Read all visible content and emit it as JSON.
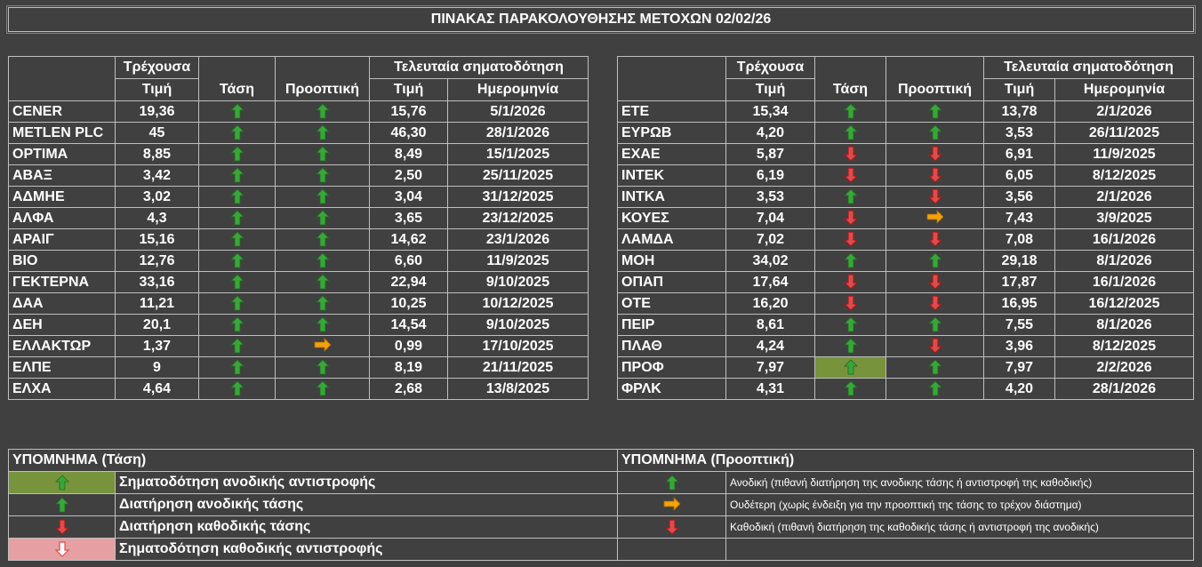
{
  "title": "ΠΙΝΑΚΑΣ ΠΑΡΑΚΟΛΟΥΘΗΣΗΣ ΜΕΤΟΧΩΝ 02/02/26",
  "headers": {
    "current_line1": "Τρέχουσα",
    "current_line2": "Τιμή",
    "trend": "Τάση",
    "outlook": "Προοπτική",
    "last_signal": "Τελευταία σηματοδότηση",
    "price": "Τιμή",
    "date": "Ημερομηνία"
  },
  "left_rows": [
    {
      "name": "CENER",
      "current": "19,36",
      "trend": "up",
      "outlook": "up",
      "price": "15,76",
      "date": "5/1/2026"
    },
    {
      "name": "METLEN PLC",
      "current": "45",
      "trend": "up",
      "outlook": "up",
      "price": "46,30",
      "date": "28/1/2026"
    },
    {
      "name": "ΟΡΤΙΜΑ",
      "current": "8,85",
      "trend": "up",
      "outlook": "up",
      "price": "8,49",
      "date": "15/1/2025"
    },
    {
      "name": "ΑΒΑΞ",
      "current": "3,42",
      "trend": "up",
      "outlook": "up",
      "price": "2,50",
      "date": "25/11/2025"
    },
    {
      "name": "ΑΔΜΗΕ",
      "current": "3,02",
      "trend": "up",
      "outlook": "up",
      "price": "3,04",
      "date": "31/12/2025"
    },
    {
      "name": "ΑΛΦΑ",
      "current": "4,3",
      "trend": "up",
      "outlook": "up",
      "price": "3,65",
      "date": "23/12/2025"
    },
    {
      "name": "ΑΡΑΙΓ",
      "current": "15,16",
      "trend": "up",
      "outlook": "up",
      "price": "14,62",
      "date": "23/1/2026"
    },
    {
      "name": "ΒΙΟ",
      "current": "12,76",
      "trend": "up",
      "outlook": "up",
      "price": "6,60",
      "date": "11/9/2025"
    },
    {
      "name": "ΓΕΚΤΕΡΝΑ",
      "current": "33,16",
      "trend": "up",
      "outlook": "up",
      "price": "22,94",
      "date": "9/10/2025"
    },
    {
      "name": "ΔΑΑ",
      "current": "11,21",
      "trend": "up",
      "outlook": "up",
      "price": "10,25",
      "date": "10/12/2025"
    },
    {
      "name": "ΔΕΗ",
      "current": "20,1",
      "trend": "up",
      "outlook": "up",
      "price": "14,54",
      "date": "9/10/2025"
    },
    {
      "name": "ΕΛΛΑΚΤΩΡ",
      "current": "1,37",
      "trend": "up",
      "outlook": "neutral",
      "price": "0,99",
      "date": "17/10/2025"
    },
    {
      "name": "ΕΛΠΕ",
      "current": "9",
      "trend": "up",
      "outlook": "up",
      "price": "8,19",
      "date": "21/11/2025"
    },
    {
      "name": "ΕΛΧΑ",
      "current": "4,64",
      "trend": "up",
      "outlook": "up",
      "price": "2,68",
      "date": "13/8/2025"
    }
  ],
  "right_rows": [
    {
      "name": "ΕΤΕ",
      "current": "15,34",
      "trend": "up",
      "outlook": "up",
      "price": "13,78",
      "date": "2/1/2026"
    },
    {
      "name": "ΕΥΡΩΒ",
      "current": "4,20",
      "trend": "up",
      "outlook": "up",
      "price": "3,53",
      "date": "26/11/2025"
    },
    {
      "name": "ΕΧΑΕ",
      "current": "5,87",
      "trend": "down",
      "outlook": "down",
      "price": "6,91",
      "date": "11/9/2025"
    },
    {
      "name": "ΙΝΤΕΚ",
      "current": "6,19",
      "trend": "down",
      "outlook": "down",
      "price": "6,05",
      "date": "8/12/2025"
    },
    {
      "name": "ΙΝΤΚΑ",
      "current": "3,53",
      "trend": "up",
      "outlook": "down",
      "price": "3,56",
      "date": "2/1/2026"
    },
    {
      "name": "ΚΟΥΕΣ",
      "current": "7,04",
      "trend": "down",
      "outlook": "neutral",
      "price": "7,43",
      "date": "3/9/2025"
    },
    {
      "name": "ΛΑΜΔΑ",
      "current": "7,02",
      "trend": "down",
      "outlook": "down",
      "price": "7,08",
      "date": "16/1/2026"
    },
    {
      "name": "ΜΟΗ",
      "current": "34,02",
      "trend": "up",
      "outlook": "up",
      "price": "29,18",
      "date": "8/1/2026"
    },
    {
      "name": "ΟΠΑΠ",
      "current": "17,64",
      "trend": "down",
      "outlook": "down",
      "price": "17,87",
      "date": "16/1/2026"
    },
    {
      "name": "ΟΤΕ",
      "current": "16,20",
      "trend": "down",
      "outlook": "down",
      "price": "16,95",
      "date": "16/12/2025"
    },
    {
      "name": "ΠΕΙΡ",
      "current": "8,61",
      "trend": "up",
      "outlook": "up",
      "price": "7,55",
      "date": "8/1/2026"
    },
    {
      "name": "ΠΛΑΘ",
      "current": "4,24",
      "trend": "up",
      "outlook": "down",
      "price": "3,96",
      "date": "8/12/2025"
    },
    {
      "name": "ΠΡΟΦ",
      "current": "7,97",
      "trend": "up-reversal",
      "outlook": "up",
      "price": "7,97",
      "date": "2/2/2026"
    },
    {
      "name": "ΦΡΛΚ",
      "current": "4,31",
      "trend": "up",
      "outlook": "up",
      "price": "4,20",
      "date": "28/1/2026"
    }
  ],
  "legend_trend": {
    "title": "ΥΠΟΜΝΗΜΑ (Τάση)",
    "items": [
      {
        "icon": "up-reversal",
        "text": "Σηματοδότηση ανοδικής αντιστροφής"
      },
      {
        "icon": "up",
        "text": "Διατήρηση ανοδικής τάσης"
      },
      {
        "icon": "down",
        "text": "Διατήρηση καθοδικής τάσης"
      },
      {
        "icon": "down-reversal",
        "text": "Σηματοδότηση καθοδικής αντιστροφής"
      }
    ]
  },
  "legend_outlook": {
    "title": "ΥΠΟΜΝΗΜΑ (Προοπτική)",
    "items": [
      {
        "icon": "up",
        "text": "Ανοδική (πιθανή διατήρηση της ανοδικης τάσης ή αντιστροφή της καθοδικής)"
      },
      {
        "icon": "neutral",
        "text": "Ουδέτερη (χωρίς ένδειξη για την προοπτική της τάσης το τρέχον διάστημα)"
      },
      {
        "icon": "down",
        "text": "Καθοδική (πιθανή διατήρηση της καθοδικής τάσης ή αντιστροφή της ανοδικής)"
      }
    ]
  },
  "colors": {
    "background": "#404040",
    "up_arrow": "#3aa63a",
    "down_arrow": "#e24b4b",
    "neutral_arrow": "#f2a20c",
    "up_reversal_bg": "#77933c",
    "down_reversal_bg": "#e6a0a3"
  }
}
